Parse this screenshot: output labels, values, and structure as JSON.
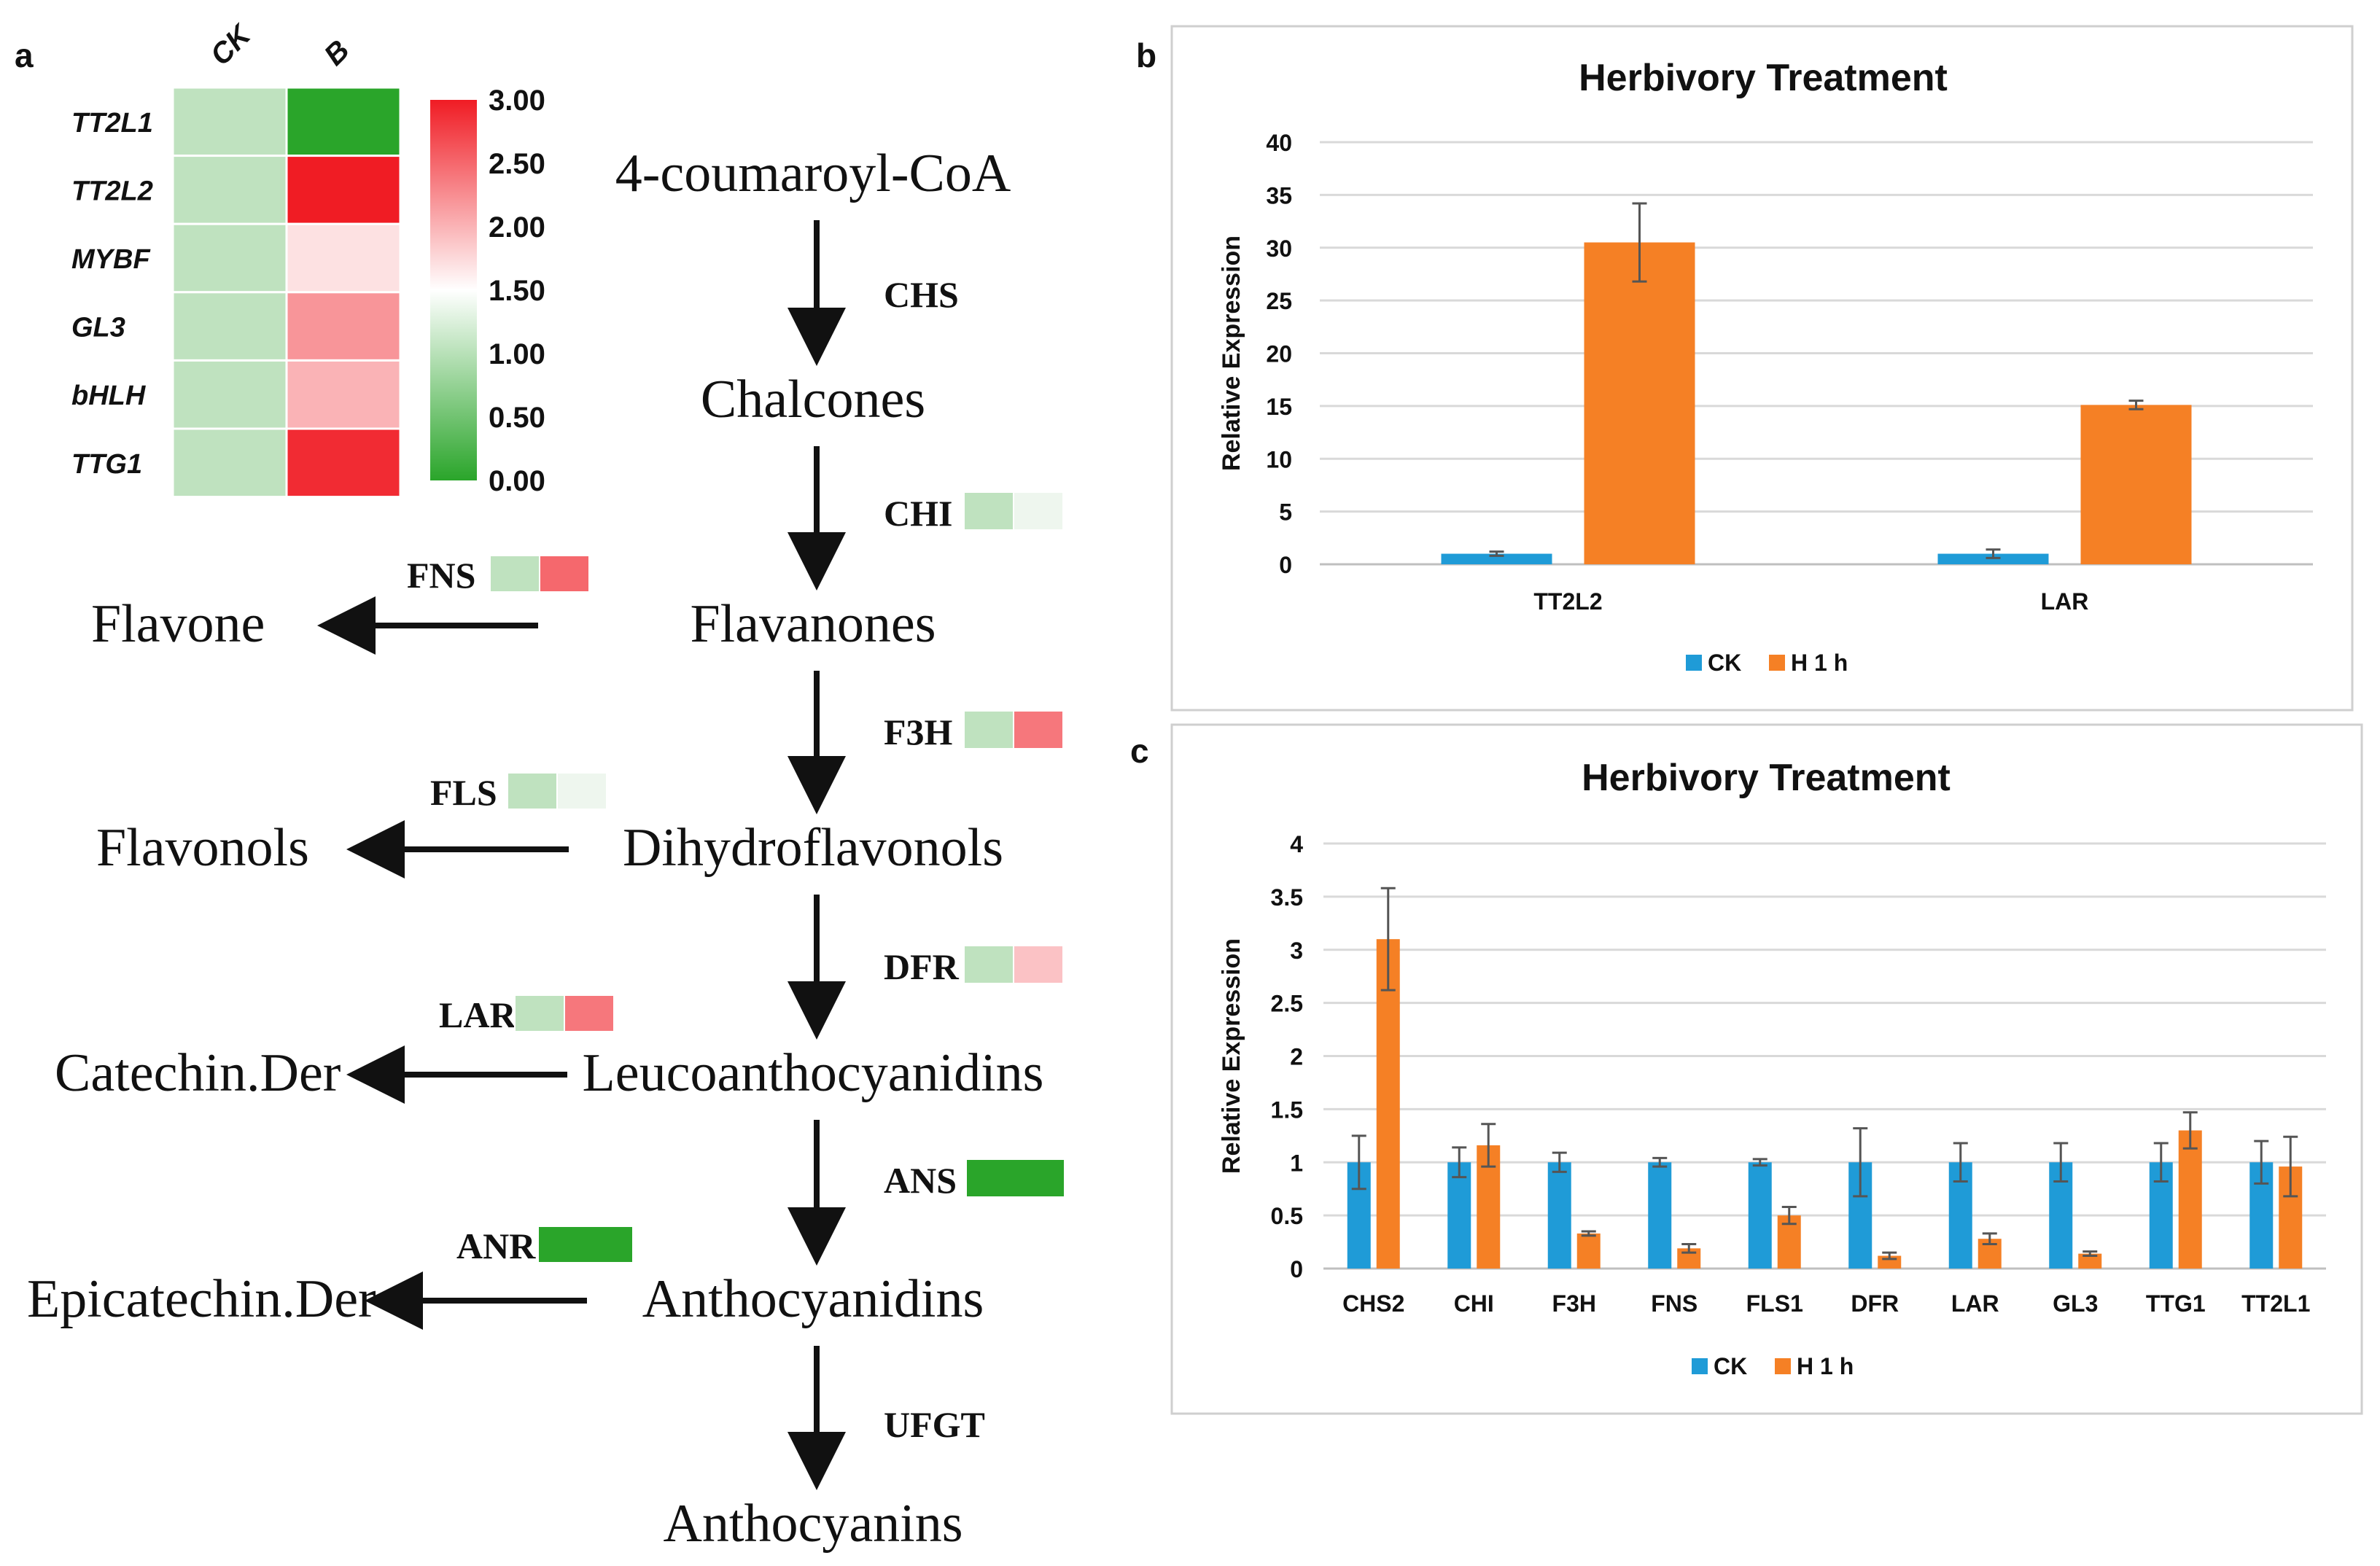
{
  "panel_labels": {
    "a": "a",
    "b": "b",
    "c": "c"
  },
  "heatmap": {
    "column_labels": [
      "CK",
      "B"
    ],
    "genes": [
      "TT2L1",
      "TT2L2",
      "MYBF",
      "GL3",
      "bHLH",
      "TTG1"
    ],
    "values": [
      [
        1.0,
        0.0
      ],
      [
        1.0,
        3.0
      ],
      [
        1.0,
        1.7
      ],
      [
        1.0,
        2.2
      ],
      [
        1.0,
        2.0
      ],
      [
        1.0,
        2.9
      ]
    ],
    "scale_min": 0,
    "scale_max": 3,
    "scale_labels": [
      "3.00",
      "2.50",
      "2.00",
      "1.50",
      "1.00",
      "0.50",
      "0.00"
    ],
    "colors": {
      "low": "#2aa52a",
      "mid": "#ffffff",
      "high": "#f01c24"
    }
  },
  "pathway": {
    "main_compounds": [
      "4-coumaroyl-CoA",
      "Chalcones",
      "Flavanones",
      "Dihydroflavonols",
      "Leucoanthocyanidins",
      "Anthocyanidins",
      "Anthocyanins"
    ],
    "main_enzymes": [
      {
        "name": "CHS",
        "values": []
      },
      {
        "name": "CHI",
        "values": [
          1.0,
          1.4
        ]
      },
      {
        "name": "F3H",
        "values": [
          1.0,
          2.4
        ]
      },
      {
        "name": "DFR",
        "values": [
          1.0,
          1.9
        ]
      },
      {
        "name": "ANS",
        "values": [
          0.0
        ]
      },
      {
        "name": "UFGT",
        "values": []
      }
    ],
    "branches": [
      {
        "enzyme": "FNS",
        "product": "Flavone",
        "values": [
          1.0,
          2.5
        ]
      },
      {
        "enzyme": "FLS",
        "product": "Flavonols",
        "values": [
          1.0,
          1.3
        ]
      },
      {
        "enzyme": "LAR",
        "product": "Catechin.Der",
        "values": [
          1.0,
          2.4
        ]
      },
      {
        "enzyme": "ANR",
        "product": "Epicatechin.Der",
        "values": [
          0.0
        ]
      }
    ]
  },
  "chart_data": [
    {
      "type": "bar",
      "title": "Herbivory Treatment",
      "xlabel": "",
      "ylabel": "Relative Expression",
      "ylim": [
        0,
        40
      ],
      "yticks": [
        0,
        5,
        10,
        15,
        20,
        25,
        30,
        35,
        40
      ],
      "categories": [
        "TT2L2",
        "LAR"
      ],
      "series": [
        {
          "name": "CK",
          "color": "#1f9bd7",
          "values": [
            1,
            1
          ],
          "errors": [
            0.2,
            0.4
          ]
        },
        {
          "name": "H 1 h",
          "color": "#f58025",
          "values": [
            30.5,
            15.1
          ],
          "errors": [
            3.7,
            0.4
          ]
        }
      ],
      "grid": true,
      "legend": "bottom"
    },
    {
      "type": "bar",
      "title": "Herbivory Treatment",
      "xlabel": "",
      "ylabel": "Relative Expression",
      "ylim": [
        0,
        4
      ],
      "yticks": [
        0,
        0.5,
        1,
        1.5,
        2,
        2.5,
        3,
        3.5,
        4
      ],
      "categories": [
        "CHS2",
        "CHI",
        "F3H",
        "FNS",
        "FLS1",
        "DFR",
        "LAR",
        "GL3",
        "TTG1",
        "TT2L1"
      ],
      "series": [
        {
          "name": "CK",
          "color": "#1f9bd7",
          "values": [
            1,
            1,
            1,
            1,
            1,
            1,
            1,
            1,
            1,
            1
          ],
          "errors": [
            0.25,
            0.14,
            0.09,
            0.04,
            0.03,
            0.32,
            0.18,
            0.18,
            0.18,
            0.2
          ]
        },
        {
          "name": "H 1 h",
          "color": "#f58025",
          "values": [
            3.1,
            1.16,
            0.33,
            0.19,
            0.5,
            0.12,
            0.28,
            0.14,
            1.3,
            0.96
          ],
          "errors": [
            0.48,
            0.2,
            0.02,
            0.04,
            0.08,
            0.03,
            0.05,
            0.02,
            0.17,
            0.28
          ]
        }
      ],
      "grid": true,
      "legend": "bottom"
    }
  ]
}
